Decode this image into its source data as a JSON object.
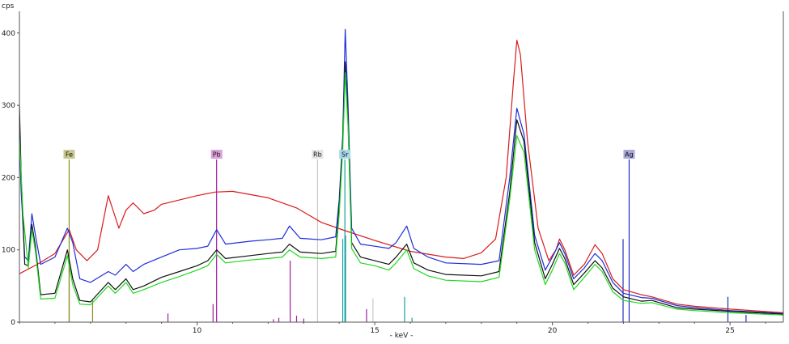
{
  "chart_data": {
    "type": "line",
    "title": "",
    "ylabel": "cps",
    "xlabel": "- keV -",
    "xlim": [
      5.0,
      26.5
    ],
    "ylim": [
      0,
      430
    ],
    "x_ticks": [
      10,
      15,
      20,
      25
    ],
    "x_tick_labels": [
      "10",
      "15",
      "20",
      "25"
    ],
    "y_ticks": [
      0,
      100,
      200,
      300,
      400
    ],
    "y_tick_labels": [
      "0",
      "100",
      "200",
      "300",
      "400"
    ],
    "grid": false,
    "series": [
      {
        "color": "#d81c1c",
        "points": [
          [
            5.0,
            67
          ],
          [
            5.5,
            80
          ],
          [
            6.0,
            95
          ],
          [
            6.4,
            128
          ],
          [
            6.6,
            100
          ],
          [
            6.9,
            85
          ],
          [
            7.2,
            100
          ],
          [
            7.5,
            175
          ],
          [
            7.8,
            130
          ],
          [
            8.0,
            155
          ],
          [
            8.2,
            165
          ],
          [
            8.5,
            150
          ],
          [
            8.8,
            155
          ],
          [
            9.0,
            163
          ],
          [
            10.0,
            175
          ],
          [
            10.5,
            180
          ],
          [
            11.0,
            181
          ],
          [
            12.0,
            172
          ],
          [
            12.8,
            158
          ],
          [
            13.5,
            138
          ],
          [
            14.2,
            126
          ],
          [
            15.0,
            113
          ],
          [
            16.0,
            98
          ],
          [
            17.0,
            90
          ],
          [
            17.5,
            88
          ],
          [
            18.0,
            96
          ],
          [
            18.4,
            115
          ],
          [
            18.7,
            200
          ],
          [
            18.9,
            330
          ],
          [
            19.0,
            390
          ],
          [
            19.1,
            370
          ],
          [
            19.3,
            250
          ],
          [
            19.6,
            130
          ],
          [
            19.9,
            85
          ],
          [
            20.1,
            100
          ],
          [
            20.2,
            115
          ],
          [
            20.35,
            100
          ],
          [
            20.6,
            65
          ],
          [
            20.9,
            80
          ],
          [
            21.2,
            107
          ],
          [
            21.4,
            95
          ],
          [
            21.7,
            60
          ],
          [
            22.0,
            45
          ],
          [
            22.5,
            38
          ],
          [
            22.8,
            35
          ],
          [
            23.5,
            25
          ],
          [
            24.0,
            22
          ],
          [
            25.0,
            18
          ],
          [
            26.5,
            13
          ]
        ]
      },
      {
        "color": "#1f2ed8",
        "points": [
          [
            5.0,
            255
          ],
          [
            5.05,
            180
          ],
          [
            5.15,
            90
          ],
          [
            5.25,
            85
          ],
          [
            5.35,
            150
          ],
          [
            5.45,
            120
          ],
          [
            5.6,
            80
          ],
          [
            6.0,
            90
          ],
          [
            6.35,
            130
          ],
          [
            6.5,
            110
          ],
          [
            6.7,
            60
          ],
          [
            7.0,
            55
          ],
          [
            7.5,
            70
          ],
          [
            7.7,
            65
          ],
          [
            8.0,
            80
          ],
          [
            8.2,
            70
          ],
          [
            8.5,
            80
          ],
          [
            9.0,
            90
          ],
          [
            9.5,
            100
          ],
          [
            10.0,
            102
          ],
          [
            10.3,
            105
          ],
          [
            10.55,
            128
          ],
          [
            10.8,
            108
          ],
          [
            11.5,
            112
          ],
          [
            12.0,
            114
          ],
          [
            12.4,
            116
          ],
          [
            12.6,
            133
          ],
          [
            12.9,
            116
          ],
          [
            13.5,
            114
          ],
          [
            13.9,
            118
          ],
          [
            14.0,
            170
          ],
          [
            14.1,
            260
          ],
          [
            14.17,
            405
          ],
          [
            14.25,
            300
          ],
          [
            14.35,
            130
          ],
          [
            14.6,
            108
          ],
          [
            15.0,
            105
          ],
          [
            15.4,
            102
          ],
          [
            15.6,
            110
          ],
          [
            15.9,
            133
          ],
          [
            16.1,
            102
          ],
          [
            16.5,
            90
          ],
          [
            17.0,
            82
          ],
          [
            18.0,
            80
          ],
          [
            18.5,
            85
          ],
          [
            18.8,
            200
          ],
          [
            19.0,
            296
          ],
          [
            19.2,
            260
          ],
          [
            19.5,
            120
          ],
          [
            19.8,
            72
          ],
          [
            20.0,
            90
          ],
          [
            20.2,
            110
          ],
          [
            20.35,
            95
          ],
          [
            20.6,
            60
          ],
          [
            20.9,
            75
          ],
          [
            21.2,
            95
          ],
          [
            21.4,
            85
          ],
          [
            21.7,
            55
          ],
          [
            22.0,
            40
          ],
          [
            22.5,
            34
          ],
          [
            22.8,
            33
          ],
          [
            23.5,
            23
          ],
          [
            24.0,
            20
          ],
          [
            25.0,
            16
          ],
          [
            26.5,
            12
          ]
        ]
      },
      {
        "color": "#111111",
        "points": [
          [
            5.0,
            300
          ],
          [
            5.05,
            200
          ],
          [
            5.15,
            80
          ],
          [
            5.25,
            78
          ],
          [
            5.35,
            135
          ],
          [
            5.45,
            105
          ],
          [
            5.6,
            38
          ],
          [
            6.0,
            40
          ],
          [
            6.35,
            100
          ],
          [
            6.5,
            60
          ],
          [
            6.7,
            30
          ],
          [
            7.0,
            28
          ],
          [
            7.5,
            55
          ],
          [
            7.7,
            45
          ],
          [
            8.0,
            60
          ],
          [
            8.2,
            45
          ],
          [
            8.5,
            50
          ],
          [
            9.0,
            62
          ],
          [
            9.5,
            70
          ],
          [
            10.0,
            78
          ],
          [
            10.3,
            85
          ],
          [
            10.55,
            100
          ],
          [
            10.8,
            88
          ],
          [
            11.5,
            92
          ],
          [
            12.0,
            95
          ],
          [
            12.4,
            97
          ],
          [
            12.6,
            108
          ],
          [
            12.9,
            97
          ],
          [
            13.5,
            95
          ],
          [
            13.9,
            98
          ],
          [
            14.0,
            160
          ],
          [
            14.1,
            250
          ],
          [
            14.17,
            360
          ],
          [
            14.25,
            280
          ],
          [
            14.35,
            110
          ],
          [
            14.6,
            90
          ],
          [
            15.0,
            85
          ],
          [
            15.4,
            80
          ],
          [
            15.6,
            90
          ],
          [
            15.9,
            108
          ],
          [
            16.1,
            82
          ],
          [
            16.5,
            72
          ],
          [
            17.0,
            66
          ],
          [
            18.0,
            64
          ],
          [
            18.5,
            70
          ],
          [
            18.8,
            180
          ],
          [
            19.0,
            280
          ],
          [
            19.2,
            250
          ],
          [
            19.5,
            110
          ],
          [
            19.8,
            60
          ],
          [
            20.0,
            80
          ],
          [
            20.2,
            102
          ],
          [
            20.35,
            88
          ],
          [
            20.6,
            52
          ],
          [
            20.9,
            68
          ],
          [
            21.2,
            85
          ],
          [
            21.4,
            75
          ],
          [
            21.7,
            47
          ],
          [
            22.0,
            35
          ],
          [
            22.5,
            29
          ],
          [
            22.8,
            30
          ],
          [
            23.5,
            20
          ],
          [
            24.0,
            18
          ],
          [
            25.0,
            15
          ],
          [
            26.5,
            11
          ]
        ]
      },
      {
        "color": "#1ed81e",
        "points": [
          [
            5.0,
            255
          ],
          [
            5.1,
            150
          ],
          [
            5.25,
            75
          ],
          [
            5.35,
            128
          ],
          [
            5.45,
            98
          ],
          [
            5.6,
            32
          ],
          [
            6.0,
            33
          ],
          [
            6.35,
            92
          ],
          [
            6.5,
            52
          ],
          [
            6.7,
            25
          ],
          [
            7.0,
            24
          ],
          [
            7.5,
            50
          ],
          [
            7.7,
            40
          ],
          [
            8.0,
            55
          ],
          [
            8.2,
            40
          ],
          [
            8.5,
            45
          ],
          [
            9.0,
            55
          ],
          [
            9.5,
            63
          ],
          [
            10.0,
            72
          ],
          [
            10.3,
            78
          ],
          [
            10.55,
            94
          ],
          [
            10.8,
            82
          ],
          [
            11.5,
            86
          ],
          [
            12.0,
            88
          ],
          [
            12.4,
            90
          ],
          [
            12.6,
            100
          ],
          [
            12.9,
            90
          ],
          [
            13.5,
            88
          ],
          [
            13.9,
            90
          ],
          [
            14.0,
            150
          ],
          [
            14.1,
            240
          ],
          [
            14.17,
            345
          ],
          [
            14.25,
            270
          ],
          [
            14.35,
            102
          ],
          [
            14.6,
            82
          ],
          [
            15.0,
            78
          ],
          [
            15.4,
            72
          ],
          [
            15.6,
            82
          ],
          [
            15.9,
            100
          ],
          [
            16.1,
            74
          ],
          [
            16.5,
            64
          ],
          [
            17.0,
            58
          ],
          [
            18.0,
            56
          ],
          [
            18.5,
            62
          ],
          [
            18.8,
            170
          ],
          [
            19.0,
            258
          ],
          [
            19.2,
            235
          ],
          [
            19.5,
            100
          ],
          [
            19.8,
            52
          ],
          [
            20.0,
            72
          ],
          [
            20.2,
            95
          ],
          [
            20.35,
            82
          ],
          [
            20.6,
            45
          ],
          [
            20.9,
            62
          ],
          [
            21.2,
            80
          ],
          [
            21.4,
            70
          ],
          [
            21.7,
            42
          ],
          [
            22.0,
            30
          ],
          [
            22.5,
            26
          ],
          [
            22.8,
            27
          ],
          [
            23.5,
            18
          ],
          [
            24.0,
            16
          ],
          [
            25.0,
            13
          ],
          [
            26.5,
            10
          ]
        ]
      }
    ],
    "element_markers": [
      {
        "label": "Fe",
        "x": 6.4,
        "height": 225,
        "color": "#8a8a22",
        "tag_bg": "#c8c88e"
      },
      {
        "label": "Pb",
        "x": 10.55,
        "height": 225,
        "color": "#a020a0",
        "tag_bg": "#d8a0d8"
      },
      {
        "label": "Rb",
        "x": 13.39,
        "height": 225,
        "color": "#c8c8c8",
        "tag_bg": "#e4e4e4"
      },
      {
        "label": "Sr",
        "x": 14.16,
        "height": 225,
        "color": "#1aa0a0",
        "tag_bg": "#a8d8e8"
      },
      {
        "label": "Ag",
        "x": 22.16,
        "height": 225,
        "color": "#1f2ec0",
        "tag_bg": "#a8a8d8"
      }
    ],
    "reference_lines": [
      {
        "x": 6.4,
        "height": 78,
        "color": "#8a8a22"
      },
      {
        "x": 7.06,
        "height": 30,
        "color": "#8a8a22"
      },
      {
        "x": 9.18,
        "height": 12,
        "color": "#a020a0"
      },
      {
        "x": 10.45,
        "height": 25,
        "color": "#a020a0"
      },
      {
        "x": 12.62,
        "height": 85,
        "color": "#a020a0"
      },
      {
        "x": 12.15,
        "height": 4,
        "color": "#a020a0"
      },
      {
        "x": 12.3,
        "height": 6,
        "color": "#a020a0"
      },
      {
        "x": 12.8,
        "height": 9,
        "color": "#a020a0"
      },
      {
        "x": 13.0,
        "height": 5,
        "color": "#a020a0"
      },
      {
        "x": 14.1,
        "height": 115,
        "color": "#1aa0a0"
      },
      {
        "x": 14.18,
        "height": 120,
        "color": "#1aa0a0"
      },
      {
        "x": 14.77,
        "height": 18,
        "color": "#a020a0"
      },
      {
        "x": 14.95,
        "height": 33,
        "color": "#c8c8c8"
      },
      {
        "x": 15.84,
        "height": 35,
        "color": "#1aa0a0"
      },
      {
        "x": 16.05,
        "height": 6,
        "color": "#1aa0a0"
      },
      {
        "x": 21.99,
        "height": 115,
        "color": "#1f2ec0"
      },
      {
        "x": 24.94,
        "height": 35,
        "color": "#1f2ec0"
      },
      {
        "x": 25.45,
        "height": 10,
        "color": "#1f2ec0"
      }
    ]
  }
}
